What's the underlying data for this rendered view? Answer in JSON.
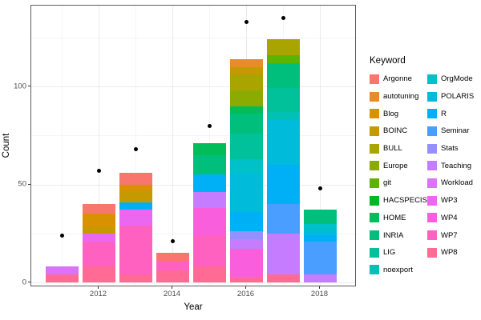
{
  "chart_data": {
    "type": "bar",
    "stacked": true,
    "title": "",
    "xlabel": "Year",
    "ylabel": "Count",
    "legend_title": "Keyword",
    "legend_position": "right",
    "grid": true,
    "x_tick_labels": [
      2012,
      2014,
      2016,
      2018
    ],
    "y_tick_labels": [
      0,
      50,
      100
    ],
    "y_minor_gridlines": [
      25,
      75,
      125
    ],
    "x_minor_gridlines": [
      2011,
      2013,
      2015,
      2017
    ],
    "ylim": [
      0,
      141
    ],
    "categories": [
      2011,
      2012,
      2013,
      2014,
      2015,
      2016,
      2017,
      2018
    ],
    "point_color": "#000000",
    "keywords": [
      {
        "name": "Argonne",
        "color": "#F8766D"
      },
      {
        "name": "autotuning",
        "color": "#E98A2B"
      },
      {
        "name": "Blog",
        "color": "#D89200"
      },
      {
        "name": "BOINC",
        "color": "#C49A00"
      },
      {
        "name": "BULL",
        "color": "#A9A400"
      },
      {
        "name": "Europe",
        "color": "#8CAB00"
      },
      {
        "name": "git",
        "color": "#5EB300"
      },
      {
        "name": "HACSPECIS",
        "color": "#00B920"
      },
      {
        "name": "HOME",
        "color": "#00BC59"
      },
      {
        "name": "INRIA",
        "color": "#00BF7D"
      },
      {
        "name": "LIG",
        "color": "#00C19A"
      },
      {
        "name": "noexport",
        "color": "#00C1B3"
      },
      {
        "name": "OrgMode",
        "color": "#00C0C8"
      },
      {
        "name": "POLARIS",
        "color": "#00BBDA"
      },
      {
        "name": "R",
        "color": "#00B0F6"
      },
      {
        "name": "Seminar",
        "color": "#4A9EFF"
      },
      {
        "name": "Stats",
        "color": "#9590FF"
      },
      {
        "name": "Teaching",
        "color": "#C67CFF"
      },
      {
        "name": "Workload",
        "color": "#DB72FA"
      },
      {
        "name": "WP3",
        "color": "#EC67F0"
      },
      {
        "name": "WP4",
        "color": "#F95FDC"
      },
      {
        "name": "WP7",
        "color": "#FF61C0"
      },
      {
        "name": "WP8",
        "color": "#FF6B94"
      }
    ],
    "bars": [
      {
        "year": 2011,
        "total": 8,
        "segments": [
          {
            "keyword": "WP8",
            "value": 4
          },
          {
            "keyword": "Workload",
            "value": 4
          }
        ]
      },
      {
        "year": 2012,
        "total": 40,
        "segments": [
          {
            "keyword": "WP8",
            "value": 8
          },
          {
            "keyword": "WP7",
            "value": 13
          },
          {
            "keyword": "WP3",
            "value": 4
          },
          {
            "keyword": "BOINC",
            "value": 3
          },
          {
            "keyword": "Blog",
            "value": 7
          },
          {
            "keyword": "Argonne",
            "value": 5
          }
        ]
      },
      {
        "year": 2013,
        "total": 56,
        "segments": [
          {
            "keyword": "WP8",
            "value": 4
          },
          {
            "keyword": "WP7",
            "value": 25
          },
          {
            "keyword": "WP3",
            "value": 8
          },
          {
            "keyword": "R",
            "value": 4
          },
          {
            "keyword": "BOINC",
            "value": 5
          },
          {
            "keyword": "Blog",
            "value": 4
          },
          {
            "keyword": "Argonne",
            "value": 6
          }
        ]
      },
      {
        "year": 2014,
        "total": 15,
        "segments": [
          {
            "keyword": "WP8",
            "value": 6
          },
          {
            "keyword": "WP7",
            "value": 5
          },
          {
            "keyword": "Argonne",
            "value": 4
          }
        ]
      },
      {
        "year": 2015,
        "total": 71,
        "segments": [
          {
            "keyword": "WP8",
            "value": 8
          },
          {
            "keyword": "WP7",
            "value": 16
          },
          {
            "keyword": "WP4",
            "value": 14
          },
          {
            "keyword": "Teaching",
            "value": 8
          },
          {
            "keyword": "R",
            "value": 9
          },
          {
            "keyword": "INRIA",
            "value": 10
          },
          {
            "keyword": "HOME",
            "value": 6
          }
        ]
      },
      {
        "year": 2016,
        "total": 114,
        "segments": [
          {
            "keyword": "WP8",
            "value": 3
          },
          {
            "keyword": "WP4",
            "value": 14
          },
          {
            "keyword": "Teaching",
            "value": 5
          },
          {
            "keyword": "Stats",
            "value": 4
          },
          {
            "keyword": "R",
            "value": 10
          },
          {
            "keyword": "POLARIS",
            "value": 20
          },
          {
            "keyword": "OrgMode",
            "value": 7
          },
          {
            "keyword": "LIG",
            "value": 13
          },
          {
            "keyword": "INRIA",
            "value": 10
          },
          {
            "keyword": "HOME",
            "value": 4
          },
          {
            "keyword": "Europe",
            "value": 8
          },
          {
            "keyword": "BULL",
            "value": 8
          },
          {
            "keyword": "BOINC",
            "value": 4
          },
          {
            "keyword": "autotuning",
            "value": 4
          }
        ]
      },
      {
        "year": 2017,
        "total": 124,
        "segments": [
          {
            "keyword": "WP8",
            "value": 4
          },
          {
            "keyword": "Teaching",
            "value": 21
          },
          {
            "keyword": "Seminar",
            "value": 15
          },
          {
            "keyword": "R",
            "value": 20
          },
          {
            "keyword": "POLARIS",
            "value": 23
          },
          {
            "keyword": "noexport",
            "value": 4
          },
          {
            "keyword": "LIG",
            "value": 12
          },
          {
            "keyword": "INRIA",
            "value": 13
          },
          {
            "keyword": "git",
            "value": 4
          },
          {
            "keyword": "BULL",
            "value": 8
          }
        ]
      },
      {
        "year": 2018,
        "total": 37,
        "segments": [
          {
            "keyword": "Teaching",
            "value": 4
          },
          {
            "keyword": "Seminar",
            "value": 17
          },
          {
            "keyword": "R",
            "value": 3
          },
          {
            "keyword": "POLARIS",
            "value": 3
          },
          {
            "keyword": "OrgMode",
            "value": 3
          },
          {
            "keyword": "INRIA",
            "value": 7
          }
        ]
      }
    ],
    "scatter_overlay": [
      {
        "year": 2011,
        "value": 24
      },
      {
        "year": 2012,
        "value": 57
      },
      {
        "year": 2013,
        "value": 68
      },
      {
        "year": 2014,
        "value": 21
      },
      {
        "year": 2015,
        "value": 80
      },
      {
        "year": 2016,
        "value": 133
      },
      {
        "year": 2017,
        "value": 135
      },
      {
        "year": 2018,
        "value": 48
      }
    ]
  }
}
